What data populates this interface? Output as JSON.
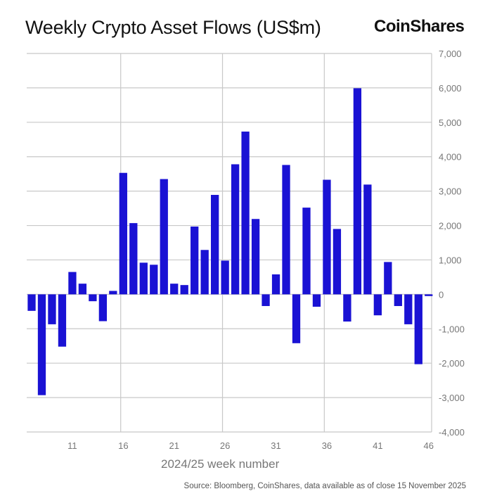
{
  "title": "Weekly Crypto Asset Flows (US$m)",
  "brand": "CoinShares",
  "source": "Source: Bloomberg, CoinShares, data available as of close 15 November 2025",
  "colors": {
    "bar": "#1a12d4",
    "grid": "#c8c8c8",
    "tick": "#777777"
  },
  "chart_data": {
    "type": "bar",
    "title": "Weekly Crypto Asset Flows (US$m)",
    "xlabel": "2024/25 week number",
    "ylabel": "",
    "ylim": [
      -4000,
      7000
    ],
    "yticks": [
      7000,
      6000,
      5000,
      4000,
      3000,
      2000,
      1000,
      0,
      -1000,
      -2000,
      -3000,
      -4000
    ],
    "ytick_labels": [
      "7,000",
      "6,000",
      "5,000",
      "4,000",
      "3,000",
      "2,000",
      "1,000",
      "0",
      "-1,000",
      "-2,000",
      "-3,000",
      "-4,000"
    ],
    "xtick_labels": [
      "11",
      "16",
      "21",
      "26",
      "31",
      "36",
      "41",
      "46"
    ],
    "xgrid_weeks": [
      16,
      26,
      36
    ],
    "categories": [
      7,
      8,
      9,
      10,
      11,
      12,
      13,
      14,
      15,
      16,
      17,
      18,
      19,
      20,
      21,
      22,
      23,
      24,
      25,
      26,
      27,
      28,
      29,
      30,
      31,
      32,
      33,
      34,
      35,
      36,
      37,
      38,
      39,
      40,
      41,
      42,
      43,
      44,
      45,
      46
    ],
    "values": [
      -480,
      -2930,
      -870,
      -1520,
      650,
      310,
      -200,
      -780,
      100,
      3530,
      2070,
      920,
      860,
      3350,
      310,
      270,
      1970,
      1290,
      2890,
      980,
      3780,
      4730,
      2190,
      -340,
      580,
      3760,
      -1420,
      2520,
      -360,
      3330,
      1900,
      -790,
      5990,
      3190,
      -610,
      940,
      -340,
      -870,
      -2030,
      -50
    ]
  }
}
